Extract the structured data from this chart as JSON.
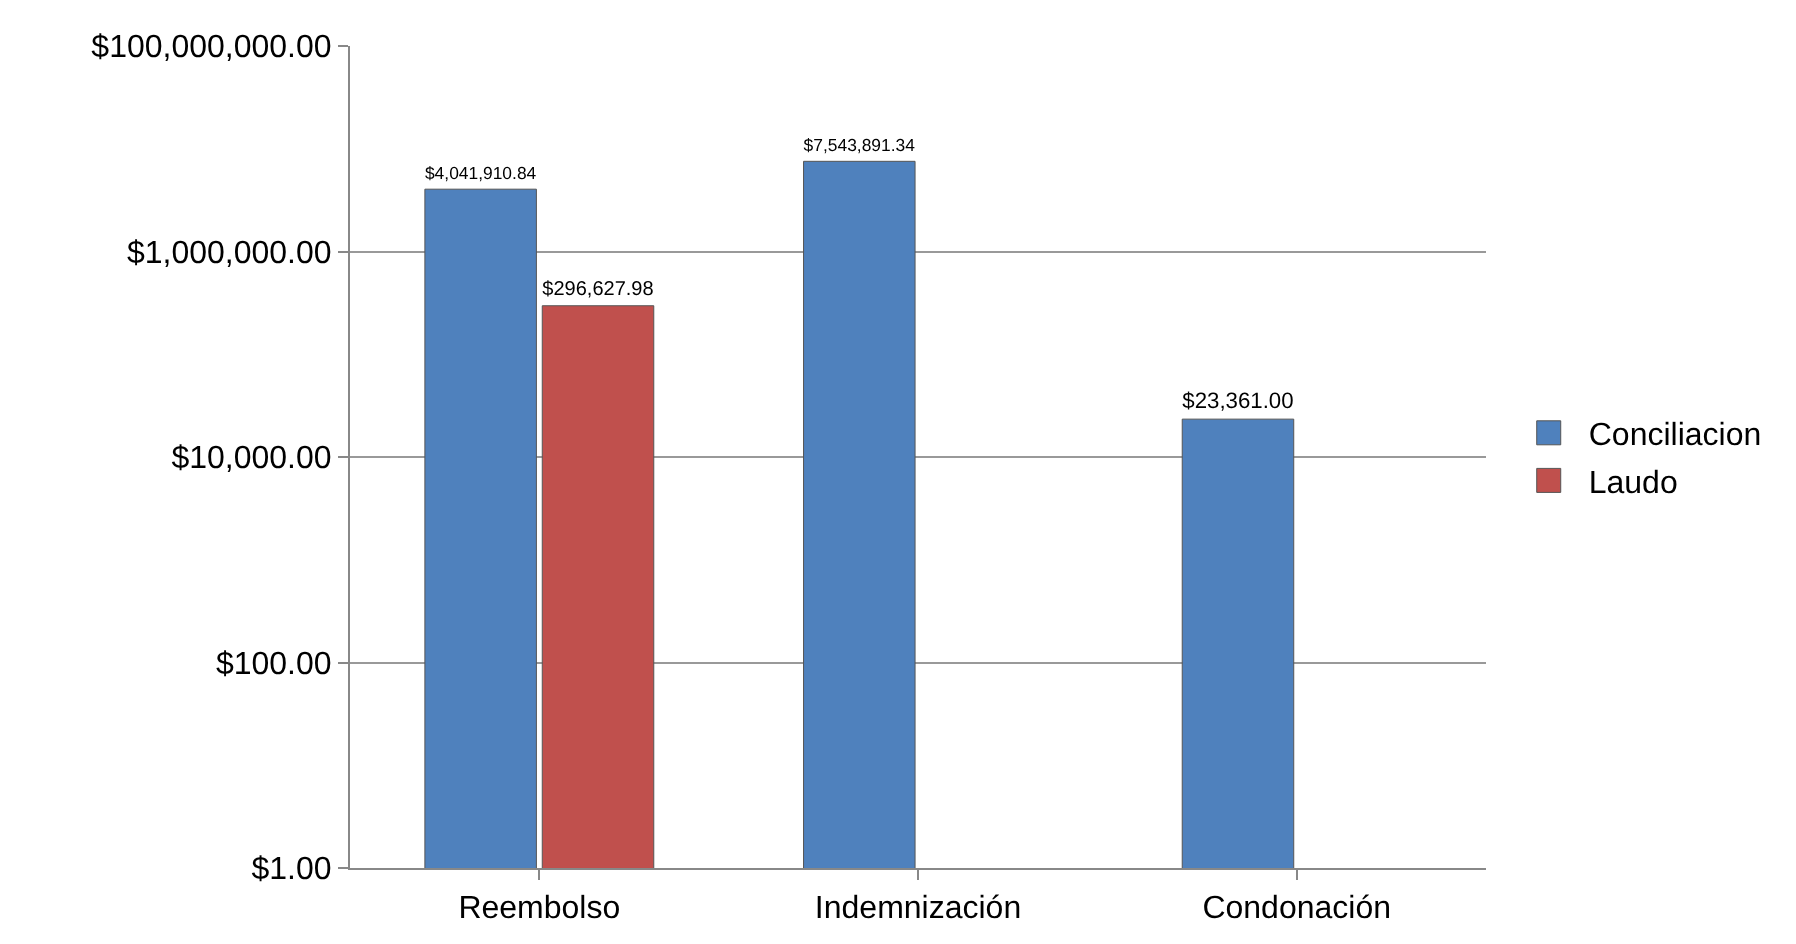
{
  "chart_data": {
    "type": "bar",
    "categories": [
      "Reembolso",
      "Indemnización",
      "Condonación"
    ],
    "series": [
      {
        "name": "Conciliacion",
        "color": "#4f81bd",
        "values": [
          4041910.84,
          7543891.34,
          23361
        ],
        "value_labels": [
          "$4,041,910.84",
          "$7,543,891.34",
          "$23,361.00"
        ]
      },
      {
        "name": "Laudo",
        "color": "#c0504d",
        "values": [
          296627.98,
          null,
          null
        ],
        "value_labels": [
          "$296,627.98",
          null,
          null
        ]
      }
    ],
    "log": true,
    "ylim": [
      1,
      100000000
    ],
    "yticks": [
      {
        "value": 1,
        "label": "$1.00"
      },
      {
        "value": 100,
        "label": "$100.00"
      },
      {
        "value": 10000,
        "label": "$10,000.00"
      },
      {
        "value": 1000000,
        "label": "$1,000,000.00"
      },
      {
        "value": 100000000,
        "label": "$100,000,000.00"
      }
    ],
    "grid": "y",
    "legend": "right"
  }
}
